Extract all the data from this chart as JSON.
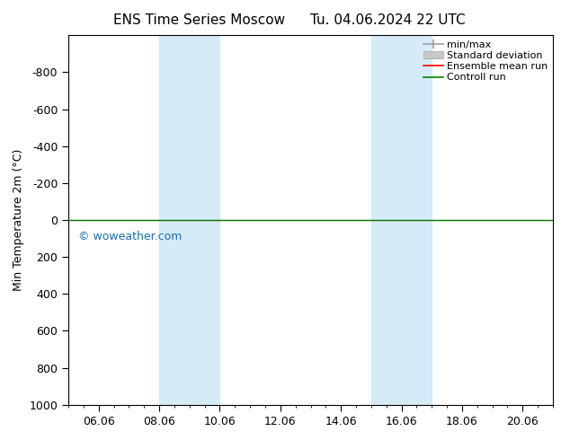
{
  "title_left": "ENS Time Series Moscow",
  "title_right": "Tu. 04.06.2024 22 UTC",
  "ylabel": "Min Temperature 2m (°C)",
  "ylim_bottom": 1000,
  "ylim_top": -1000,
  "yticks": [
    -800,
    -600,
    -400,
    -200,
    0,
    200,
    400,
    600,
    800,
    1000
  ],
  "x_tick_labels": [
    "06.06",
    "08.06",
    "10.06",
    "12.06",
    "14.06",
    "16.06",
    "18.06",
    "20.06"
  ],
  "x_tick_positions": [
    1,
    3,
    5,
    7,
    9,
    11,
    13,
    15
  ],
  "xlim": [
    0,
    16
  ],
  "band1_x0": 3.0,
  "band1_x1": 5.0,
  "band2_x0": 10.0,
  "band2_x1": 12.0,
  "band_color": "#d6eaf8",
  "control_run_color": "#008000",
  "ensemble_mean_color": "#ff0000",
  "min_max_color": "#a0a0a0",
  "std_dev_color": "#c8c8c8",
  "watermark": "© woweather.com",
  "watermark_color": "#1a6fa8",
  "legend_items": [
    "min/max",
    "Standard deviation",
    "Ensemble mean run",
    "Controll run"
  ],
  "background_color": "#ffffff"
}
